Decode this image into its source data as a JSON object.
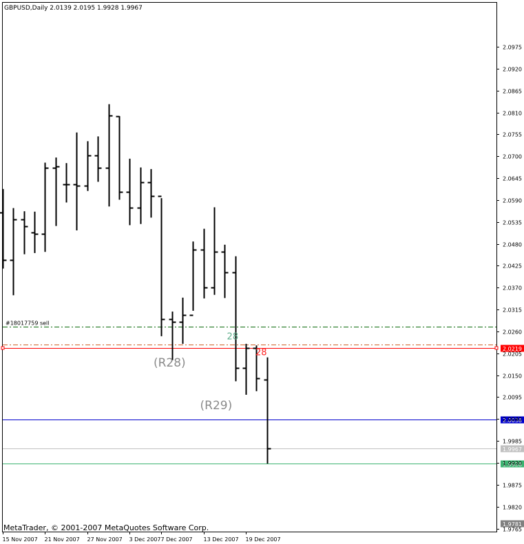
{
  "window": {
    "symbol_header": "GBPUSD,Daily  2.0139 2.0195 1.9928 1.9967",
    "copyright": "MetaTrader, © 2001-2007 MetaQuotes Software Corp."
  },
  "colors": {
    "background": "#ffffff",
    "bars": "#000000",
    "grid_border": "#000000",
    "order_line": "#006400",
    "stoploss_line": "#cd5c22",
    "red_line": "#ff0000",
    "blue_line": "#0000cd",
    "green_line": "#3cb371",
    "gray_line": "#c0c0c0",
    "label_gray": "#8a8a8a",
    "label_teal": "#5fae8c",
    "label_red": "#ff2020"
  },
  "chart_data": {
    "type": "ohlc",
    "title": "GBPUSD,Daily",
    "last_bar": {
      "open": 2.0139,
      "high": 2.0195,
      "low": 1.9928,
      "close": 1.9967
    },
    "ylim": [
      1.9765,
      2.104
    ],
    "price_ticks": [
      "2.0975",
      "2.0920",
      "2.0865",
      "2.0810",
      "2.0755",
      "2.0700",
      "2.0645",
      "2.0590",
      "2.0535",
      "2.0480",
      "2.0425",
      "2.0370",
      "2.0315",
      "2.0260",
      "2.0205",
      "2.0150",
      "2.0095",
      "2.0040",
      "1.9985",
      "1.9930",
      "1.9875",
      "1.9820",
      "1.9765"
    ],
    "date_ticks": [
      "15 Nov 2007",
      "21 Nov 2007",
      "27 Nov 2007",
      "3 Dec 2007",
      "7 Dec 2007",
      "13 Dec 2007",
      "19 Dec 2007"
    ],
    "date_tick_bar_index": [
      0,
      4,
      8,
      12,
      15,
      19,
      23
    ],
    "bars": [
      {
        "open": 2.0558,
        "high": 2.0618,
        "low": 2.0418,
        "close": 2.044
      },
      {
        "open": 2.044,
        "high": 2.057,
        "low": 2.0351,
        "close": 2.0541
      },
      {
        "open": 2.0541,
        "high": 2.0562,
        "low": 2.0454,
        "close": 2.0524
      },
      {
        "open": 2.0508,
        "high": 2.0561,
        "low": 2.0457,
        "close": 2.0505
      },
      {
        "open": 2.0505,
        "high": 2.0684,
        "low": 2.046,
        "close": 2.0672
      },
      {
        "open": 2.0672,
        "high": 2.0697,
        "low": 2.0525,
        "close": 2.0674
      },
      {
        "open": 2.063,
        "high": 2.0683,
        "low": 2.0584,
        "close": 2.063
      },
      {
        "open": 2.063,
        "high": 2.076,
        "low": 2.0514,
        "close": 2.0627
      },
      {
        "open": 2.0627,
        "high": 2.0738,
        "low": 2.0613,
        "close": 2.0702
      },
      {
        "open": 2.0702,
        "high": 2.075,
        "low": 2.0636,
        "close": 2.0671
      },
      {
        "open": 2.0671,
        "high": 2.0831,
        "low": 2.0574,
        "close": 2.0802
      },
      {
        "open": 2.08,
        "high": 2.0801,
        "low": 2.0591,
        "close": 2.061
      },
      {
        "open": 2.061,
        "high": 2.0694,
        "low": 2.0527,
        "close": 2.0571
      },
      {
        "open": 2.0571,
        "high": 2.0672,
        "low": 2.053,
        "close": 2.0635
      },
      {
        "open": 2.0635,
        "high": 2.0668,
        "low": 2.0546,
        "close": 2.06
      },
      {
        "open": 2.06,
        "high": 2.0595,
        "low": 2.0248,
        "close": 2.0291
      },
      {
        "open": 2.0291,
        "high": 2.031,
        "low": 2.0188,
        "close": 2.0284
      },
      {
        "open": 2.0284,
        "high": 2.0345,
        "low": 2.0229,
        "close": 2.0302
      },
      {
        "open": 2.0302,
        "high": 2.0486,
        "low": 2.0312,
        "close": 2.0466
      },
      {
        "open": 2.0466,
        "high": 2.0518,
        "low": 2.0343,
        "close": 2.037
      },
      {
        "open": 2.037,
        "high": 2.0572,
        "low": 2.0352,
        "close": 2.0461
      },
      {
        "open": 2.0461,
        "high": 2.0478,
        "low": 2.0344,
        "close": 2.0409
      },
      {
        "open": 2.0409,
        "high": 2.0449,
        "low": 2.0135,
        "close": 2.0168
      },
      {
        "open": 2.0168,
        "high": 2.0229,
        "low": 2.0101,
        "close": 2.0219
      },
      {
        "open": 2.0219,
        "high": 2.0225,
        "low": 2.011,
        "close": 2.0142
      },
      {
        "open": 2.0139,
        "high": 2.0195,
        "low": 1.9928,
        "close": 1.9967
      }
    ],
    "horizontal_lines": [
      {
        "price": 2.0272,
        "style": "dashdot",
        "color": "#006400",
        "label": "#18017759 sell"
      },
      {
        "price": 2.0228,
        "style": "dashdot",
        "color": "#cd5c22"
      },
      {
        "price": 2.0219,
        "style": "solid",
        "color": "#ff0000",
        "tag": "2.0219"
      },
      {
        "price": 2.0038,
        "style": "solid",
        "color": "#0000cd",
        "tag": "2.0038"
      },
      {
        "price": 1.9967,
        "style": "solid",
        "color": "#c0c0c0",
        "tag": "1.9967"
      },
      {
        "price": 1.9928,
        "style": "solid",
        "color": "#3cb371",
        "tag": "1.9928"
      }
    ],
    "bottom_tag": "1.9781",
    "annotations": [
      {
        "text": "(R28)",
        "bar_index": 15.7,
        "price": 2.0172,
        "color": "#8a8a8a",
        "size": "big"
      },
      {
        "text": "(R29)",
        "bar_index": 20.1,
        "price": 2.0065,
        "color": "#8a8a8a",
        "size": "big"
      },
      {
        "text": "28",
        "bar_index": 21.6,
        "price": 2.024,
        "color": "#5fae8c",
        "size": "small"
      },
      {
        "text": "28",
        "bar_index": 24.3,
        "price": 2.02,
        "color": "#ff2020",
        "size": "small"
      }
    ]
  }
}
